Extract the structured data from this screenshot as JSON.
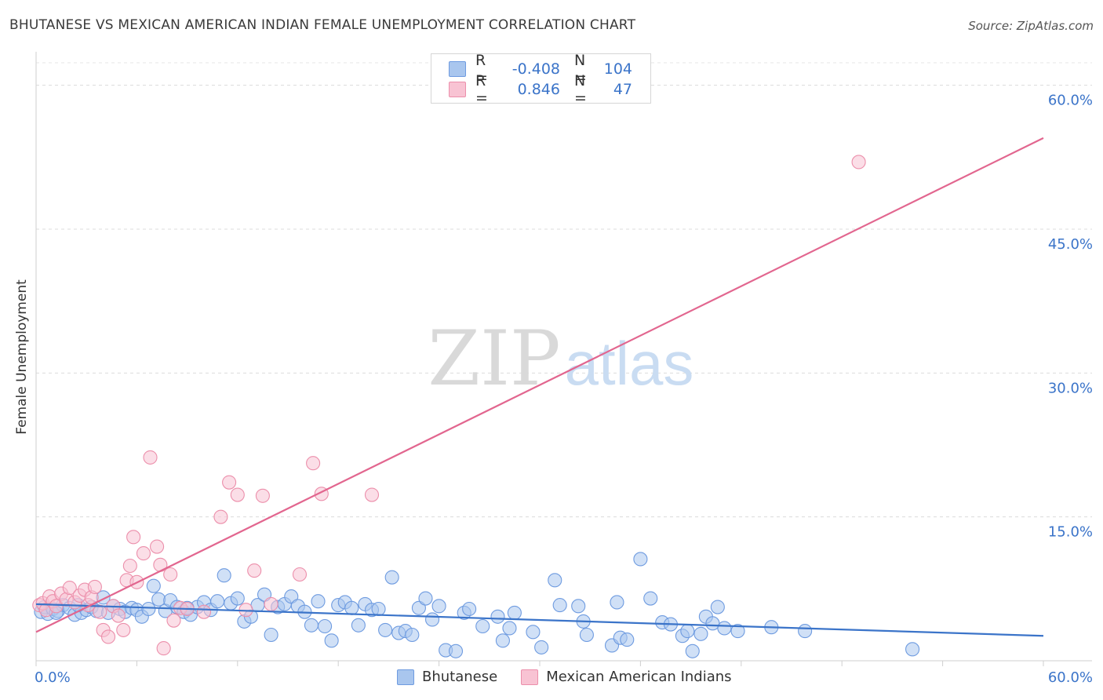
{
  "title": "BHUTANESE VS MEXICAN AMERICAN INDIAN FEMALE UNEMPLOYMENT CORRELATION CHART",
  "source": "Source: ZipAtlas.com",
  "watermark": {
    "zip": "ZIP",
    "atlas": "atlas"
  },
  "legend_stats": [
    {
      "r_label": "R =",
      "r_value": "-0.408",
      "n_label": "N =",
      "n_value": "104",
      "color": "#a9c6ee",
      "border": "#6e9be0"
    },
    {
      "r_label": "R =",
      "r_value": "0.846",
      "n_label": "N =",
      "n_value": "47",
      "color": "#f8c3d3",
      "border": "#ec8fab"
    }
  ],
  "legend_bottom": [
    {
      "label": "Bhutanese",
      "color": "#a9c6ee",
      "border": "#6e9be0"
    },
    {
      "label": "Mexican American Indians",
      "color": "#f8c3d3",
      "border": "#ec8fab"
    }
  ],
  "chart_data": {
    "type": "scatter",
    "title": "BHUTANESE VS MEXICAN AMERICAN INDIAN FEMALE UNEMPLOYMENT CORRELATION CHART",
    "xlabel": "",
    "ylabel": "Female Unemployment",
    "xlim": [
      0,
      60
    ],
    "ylim": [
      0,
      63
    ],
    "x_tick_labels": [
      "0.0%",
      "60.0%"
    ],
    "y_ticks": [
      15,
      30,
      45,
      60
    ],
    "y_tick_labels": [
      "15.0%",
      "30.0%",
      "45.0%",
      "60.0%"
    ],
    "grid": true,
    "legend_position": "top-center",
    "series": [
      {
        "name": "Bhutanese",
        "color": "#6e9be0",
        "fill": "#a9c6ee",
        "trend": {
          "x": [
            0,
            60
          ],
          "y": [
            5.9,
            2.6
          ],
          "color": "#3b74c9"
        },
        "points": [
          [
            0.3,
            5.1
          ],
          [
            0.5,
            5.6
          ],
          [
            0.7,
            4.9
          ],
          [
            1.0,
            5.4
          ],
          [
            1.3,
            5.2
          ],
          [
            1.6,
            5.8
          ],
          [
            2.0,
            5.5
          ],
          [
            2.3,
            4.8
          ],
          [
            2.7,
            5.0
          ],
          [
            3.0,
            5.3
          ],
          [
            3.3,
            5.6
          ],
          [
            3.6,
            5.2
          ],
          [
            4.0,
            6.6
          ],
          [
            4.3,
            5.0
          ],
          [
            4.6,
            5.7
          ],
          [
            5.0,
            5.4
          ],
          [
            5.3,
            5.1
          ],
          [
            5.7,
            5.5
          ],
          [
            6.0,
            5.3
          ],
          [
            6.3,
            4.6
          ],
          [
            6.7,
            5.4
          ],
          [
            7.0,
            7.8
          ],
          [
            7.3,
            6.4
          ],
          [
            7.7,
            5.2
          ],
          [
            8.0,
            6.3
          ],
          [
            8.4,
            5.6
          ],
          [
            8.8,
            5.1
          ],
          [
            9.2,
            4.8
          ],
          [
            9.6,
            5.6
          ],
          [
            10.0,
            6.1
          ],
          [
            10.4,
            5.3
          ],
          [
            10.8,
            6.2
          ],
          [
            11.2,
            8.9
          ],
          [
            11.6,
            6.0
          ],
          [
            12.0,
            6.5
          ],
          [
            12.4,
            4.1
          ],
          [
            12.8,
            4.6
          ],
          [
            13.2,
            5.8
          ],
          [
            13.6,
            6.9
          ],
          [
            14.0,
            2.7
          ],
          [
            14.4,
            5.6
          ],
          [
            14.8,
            5.9
          ],
          [
            15.2,
            6.7
          ],
          [
            15.6,
            5.7
          ],
          [
            16.0,
            5.1
          ],
          [
            16.4,
            3.7
          ],
          [
            16.8,
            6.2
          ],
          [
            17.2,
            3.6
          ],
          [
            17.6,
            2.1
          ],
          [
            18.0,
            5.8
          ],
          [
            18.4,
            6.1
          ],
          [
            18.8,
            5.5
          ],
          [
            19.2,
            3.7
          ],
          [
            19.6,
            5.9
          ],
          [
            20.0,
            5.3
          ],
          [
            20.4,
            5.4
          ],
          [
            20.8,
            3.2
          ],
          [
            21.2,
            8.7
          ],
          [
            21.6,
            2.9
          ],
          [
            22.0,
            3.1
          ],
          [
            22.4,
            2.7
          ],
          [
            22.8,
            5.5
          ],
          [
            23.2,
            6.5
          ],
          [
            23.6,
            4.3
          ],
          [
            24.0,
            5.7
          ],
          [
            24.4,
            1.1
          ],
          [
            25.0,
            1.0
          ],
          [
            25.5,
            5.0
          ],
          [
            25.8,
            5.4
          ],
          [
            26.6,
            3.6
          ],
          [
            27.5,
            4.6
          ],
          [
            27.8,
            2.1
          ],
          [
            28.2,
            3.4
          ],
          [
            28.5,
            5.0
          ],
          [
            29.6,
            3.0
          ],
          [
            30.1,
            1.4
          ],
          [
            30.9,
            8.4
          ],
          [
            31.2,
            5.8
          ],
          [
            32.3,
            5.7
          ],
          [
            32.6,
            4.1
          ],
          [
            32.8,
            2.7
          ],
          [
            34.3,
            1.6
          ],
          [
            34.6,
            6.1
          ],
          [
            34.8,
            2.4
          ],
          [
            35.2,
            2.2
          ],
          [
            36.0,
            10.6
          ],
          [
            36.6,
            6.5
          ],
          [
            37.3,
            4.0
          ],
          [
            37.8,
            3.8
          ],
          [
            38.5,
            2.6
          ],
          [
            38.8,
            3.1
          ],
          [
            39.1,
            1.0
          ],
          [
            39.6,
            2.8
          ],
          [
            39.9,
            4.6
          ],
          [
            40.3,
            3.9
          ],
          [
            40.6,
            5.6
          ],
          [
            41.0,
            3.4
          ],
          [
            41.8,
            3.1
          ],
          [
            43.8,
            3.5
          ],
          [
            45.8,
            3.1
          ],
          [
            52.2,
            1.2
          ],
          [
            1.2,
            5.0
          ],
          [
            2.5,
            5.8
          ],
          [
            9.0,
            5.5
          ]
        ]
      },
      {
        "name": "Mexican American Indians",
        "color": "#ec8fab",
        "fill": "#f8c3d3",
        "trend": {
          "x": [
            0,
            60
          ],
          "y": [
            3.0,
            54.5
          ],
          "color": "#e2668f"
        },
        "points": [
          [
            0.2,
            5.8
          ],
          [
            0.4,
            6.0
          ],
          [
            0.6,
            5.3
          ],
          [
            0.8,
            6.7
          ],
          [
            1.0,
            6.2
          ],
          [
            1.2,
            5.7
          ],
          [
            1.5,
            7.0
          ],
          [
            1.8,
            6.4
          ],
          [
            2.0,
            7.6
          ],
          [
            2.3,
            6.1
          ],
          [
            2.6,
            6.8
          ],
          [
            2.9,
            7.4
          ],
          [
            3.1,
            5.8
          ],
          [
            3.3,
            6.6
          ],
          [
            3.5,
            7.7
          ],
          [
            3.8,
            5.1
          ],
          [
            4.0,
            3.2
          ],
          [
            4.3,
            2.5
          ],
          [
            4.6,
            5.7
          ],
          [
            4.9,
            4.7
          ],
          [
            5.2,
            3.2
          ],
          [
            5.4,
            8.4
          ],
          [
            5.6,
            9.9
          ],
          [
            5.8,
            12.9
          ],
          [
            6.0,
            8.2
          ],
          [
            6.4,
            11.2
          ],
          [
            6.8,
            21.2
          ],
          [
            7.2,
            11.9
          ],
          [
            7.4,
            10.0
          ],
          [
            7.6,
            1.3
          ],
          [
            8.0,
            9.0
          ],
          [
            8.2,
            4.2
          ],
          [
            8.6,
            5.5
          ],
          [
            9.0,
            5.4
          ],
          [
            10.0,
            5.1
          ],
          [
            11.0,
            15.0
          ],
          [
            11.5,
            18.6
          ],
          [
            12.0,
            17.3
          ],
          [
            12.5,
            5.3
          ],
          [
            13.0,
            9.4
          ],
          [
            13.5,
            17.2
          ],
          [
            14.0,
            5.9
          ],
          [
            15.7,
            9.0
          ],
          [
            16.5,
            20.6
          ],
          [
            17.0,
            17.4
          ],
          [
            20.0,
            17.3
          ],
          [
            49.0,
            52.0
          ]
        ]
      }
    ]
  }
}
